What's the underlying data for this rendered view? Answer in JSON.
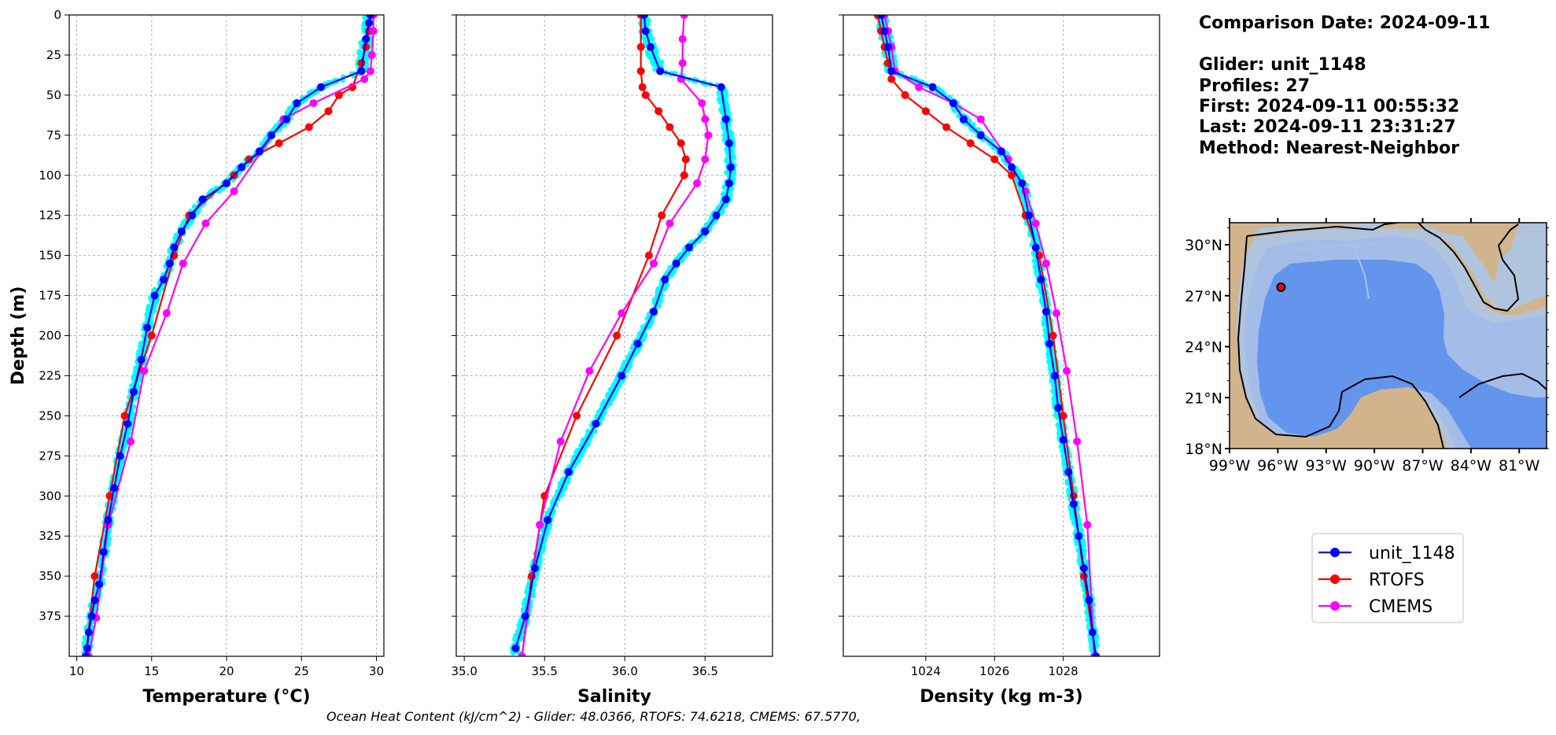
{
  "info": {
    "comparison": "Comparison Date: 2024-09-11",
    "glider": "Glider: unit_1148",
    "profiles": "Profiles: 27",
    "first": "First: 2024-09-11 00:55:32",
    "last": "Last: 2024-09-11 23:31:27",
    "method": "Method: Nearest-Neighbor"
  },
  "footer": "Ocean Heat Content (kJ/cm^2) - Glider: 48.0366,  RTOFS: 74.6218,  CMEMS: 67.5770,",
  "colors": {
    "glider": "#0000ff",
    "rtofs": "#ff0000",
    "cmems": "#ff00ff",
    "scatter": "#00ffff",
    "land": "#d2b48c",
    "shelf": "#b0c4de",
    "slope": "#a3bce8",
    "deep": "#6495ed"
  },
  "legend": [
    "unit_1148",
    "RTOFS",
    "CMEMS"
  ],
  "map": {
    "lat_labels": [
      "30°N",
      "27°N",
      "24°N",
      "21°N",
      "18°N"
    ],
    "lon_labels": [
      "99°W",
      "96°W",
      "93°W",
      "90°W",
      "87°W",
      "84°W",
      "81°W"
    ],
    "glider_position": {
      "lon": -95.8,
      "lat": 27.5
    }
  },
  "chart_data": [
    {
      "type": "line",
      "xlabel": "Temperature (°C)",
      "ylabel": "Depth (m)",
      "xlim": [
        9.5,
        30.5
      ],
      "ylim": [
        400,
        0
      ],
      "xticks": [
        10,
        15,
        20,
        25,
        30
      ],
      "yticks": [
        0,
        25,
        50,
        75,
        100,
        125,
        150,
        175,
        200,
        225,
        250,
        275,
        300,
        325,
        350,
        375
      ],
      "grid": true,
      "series": [
        {
          "name": "unit_1148",
          "x": [
            29.6,
            29.5,
            29.3,
            29.0,
            26.3,
            24.7,
            24.0,
            23.0,
            22.2,
            21.0,
            20.0,
            18.4,
            17.7,
            17.0,
            16.5,
            16.2,
            15.8,
            15.2,
            14.7,
            14.3,
            13.8,
            13.4,
            12.9,
            12.5,
            12.1,
            11.8,
            11.5,
            11.2,
            11.0,
            10.8,
            10.7,
            10.6
          ],
          "y": [
            0,
            5,
            15,
            35,
            45,
            55,
            65,
            75,
            85,
            95,
            105,
            115,
            125,
            135,
            145,
            155,
            165,
            175,
            195,
            215,
            235,
            255,
            275,
            295,
            315,
            335,
            355,
            365,
            375,
            385,
            395,
            400
          ]
        },
        {
          "name": "RTOFS",
          "x": [
            29.6,
            29.5,
            29.3,
            29.0,
            28.4,
            27.5,
            26.8,
            25.5,
            23.5,
            21.5,
            20.5,
            17.5,
            16.5,
            15.0,
            13.2,
            12.2,
            11.2,
            10.6
          ],
          "y": [
            0,
            10,
            20,
            30,
            45,
            50,
            60,
            70,
            80,
            90,
            100,
            125,
            150,
            200,
            250,
            300,
            350,
            400
          ]
        },
        {
          "name": "CMEMS",
          "x": [
            29.8,
            29.8,
            29.7,
            29.6,
            29.2,
            25.8,
            23.8,
            20.5,
            18.6,
            17.1,
            16.0,
            14.5,
            13.6,
            12.1,
            11.3,
            10.8
          ],
          "y": [
            0,
            10,
            25,
            35,
            40,
            55,
            65,
            110,
            130,
            155,
            186,
            222,
            266,
            318,
            376,
            400
          ]
        }
      ]
    },
    {
      "type": "line",
      "xlabel": "Salinity",
      "xlim": [
        34.95,
        36.92
      ],
      "ylim": [
        400,
        0
      ],
      "xticks": [
        35.0,
        35.5,
        36.0,
        36.5
      ],
      "grid": true,
      "series": [
        {
          "name": "unit_1148",
          "x": [
            36.12,
            36.13,
            36.16,
            36.22,
            36.6,
            36.63,
            36.65,
            36.66,
            36.65,
            36.63,
            36.57,
            36.5,
            36.4,
            36.32,
            36.25,
            36.18,
            36.08,
            35.98,
            35.82,
            35.65,
            35.52,
            35.44,
            35.38,
            35.32
          ],
          "y": [
            0,
            10,
            20,
            35,
            45,
            65,
            80,
            95,
            105,
            115,
            125,
            135,
            145,
            155,
            165,
            185,
            205,
            225,
            255,
            285,
            315,
            345,
            375,
            395
          ]
        },
        {
          "name": "RTOFS",
          "x": [
            36.1,
            36.1,
            36.1,
            36.11,
            36.13,
            36.21,
            36.28,
            36.35,
            36.38,
            36.37,
            36.23,
            36.15,
            35.95,
            35.7,
            35.5,
            35.42,
            35.36
          ],
          "y": [
            0,
            20,
            35,
            45,
            50,
            60,
            70,
            80,
            90,
            100,
            125,
            150,
            200,
            250,
            300,
            350,
            400
          ]
        },
        {
          "name": "CMEMS",
          "x": [
            36.37,
            36.36,
            36.36,
            36.35,
            36.48,
            36.5,
            36.52,
            36.5,
            36.45,
            36.28,
            36.18,
            35.98,
            35.78,
            35.6,
            35.47,
            35.36
          ],
          "y": [
            0,
            15,
            30,
            40,
            55,
            65,
            75,
            90,
            105,
            130,
            155,
            186,
            222,
            266,
            318,
            400
          ]
        }
      ]
    },
    {
      "type": "line",
      "xlabel": "Density (kg m-3)",
      "xlim": [
        1021.6,
        1030.8
      ],
      "ylim": [
        400,
        0
      ],
      "xticks": [
        1024,
        1026,
        1028
      ],
      "grid": true,
      "series": [
        {
          "name": "unit_1148",
          "x": [
            1022.7,
            1022.8,
            1022.9,
            1023.0,
            1024.2,
            1024.8,
            1025.1,
            1025.6,
            1026.2,
            1026.5,
            1026.8,
            1027.0,
            1027.2,
            1027.35,
            1027.5,
            1027.6,
            1027.75,
            1027.85,
            1028.0,
            1028.15,
            1028.3,
            1028.45,
            1028.6,
            1028.75,
            1028.85,
            1028.95
          ],
          "y": [
            0,
            10,
            20,
            35,
            45,
            55,
            65,
            75,
            85,
            95,
            105,
            125,
            145,
            165,
            185,
            205,
            225,
            245,
            265,
            285,
            305,
            325,
            345,
            365,
            385,
            400
          ]
        },
        {
          "name": "RTOFS",
          "x": [
            1022.6,
            1022.7,
            1022.8,
            1022.9,
            1023.0,
            1023.4,
            1024.0,
            1024.6,
            1025.3,
            1026.0,
            1026.5,
            1026.9,
            1027.3,
            1027.7,
            1028.0,
            1028.3,
            1028.6,
            1028.95
          ],
          "y": [
            0,
            10,
            20,
            30,
            40,
            50,
            60,
            70,
            80,
            90,
            100,
            125,
            150,
            200,
            250,
            300,
            350,
            400
          ]
        },
        {
          "name": "CMEMS",
          "x": [
            1022.8,
            1022.9,
            1023.0,
            1023.1,
            1023.8,
            1024.8,
            1025.6,
            1026.4,
            1026.9,
            1027.2,
            1027.5,
            1027.8,
            1028.1,
            1028.4,
            1028.7,
            1028.9
          ],
          "y": [
            0,
            10,
            20,
            35,
            45,
            55,
            65,
            90,
            110,
            130,
            155,
            186,
            222,
            266,
            318,
            400
          ]
        }
      ]
    }
  ]
}
